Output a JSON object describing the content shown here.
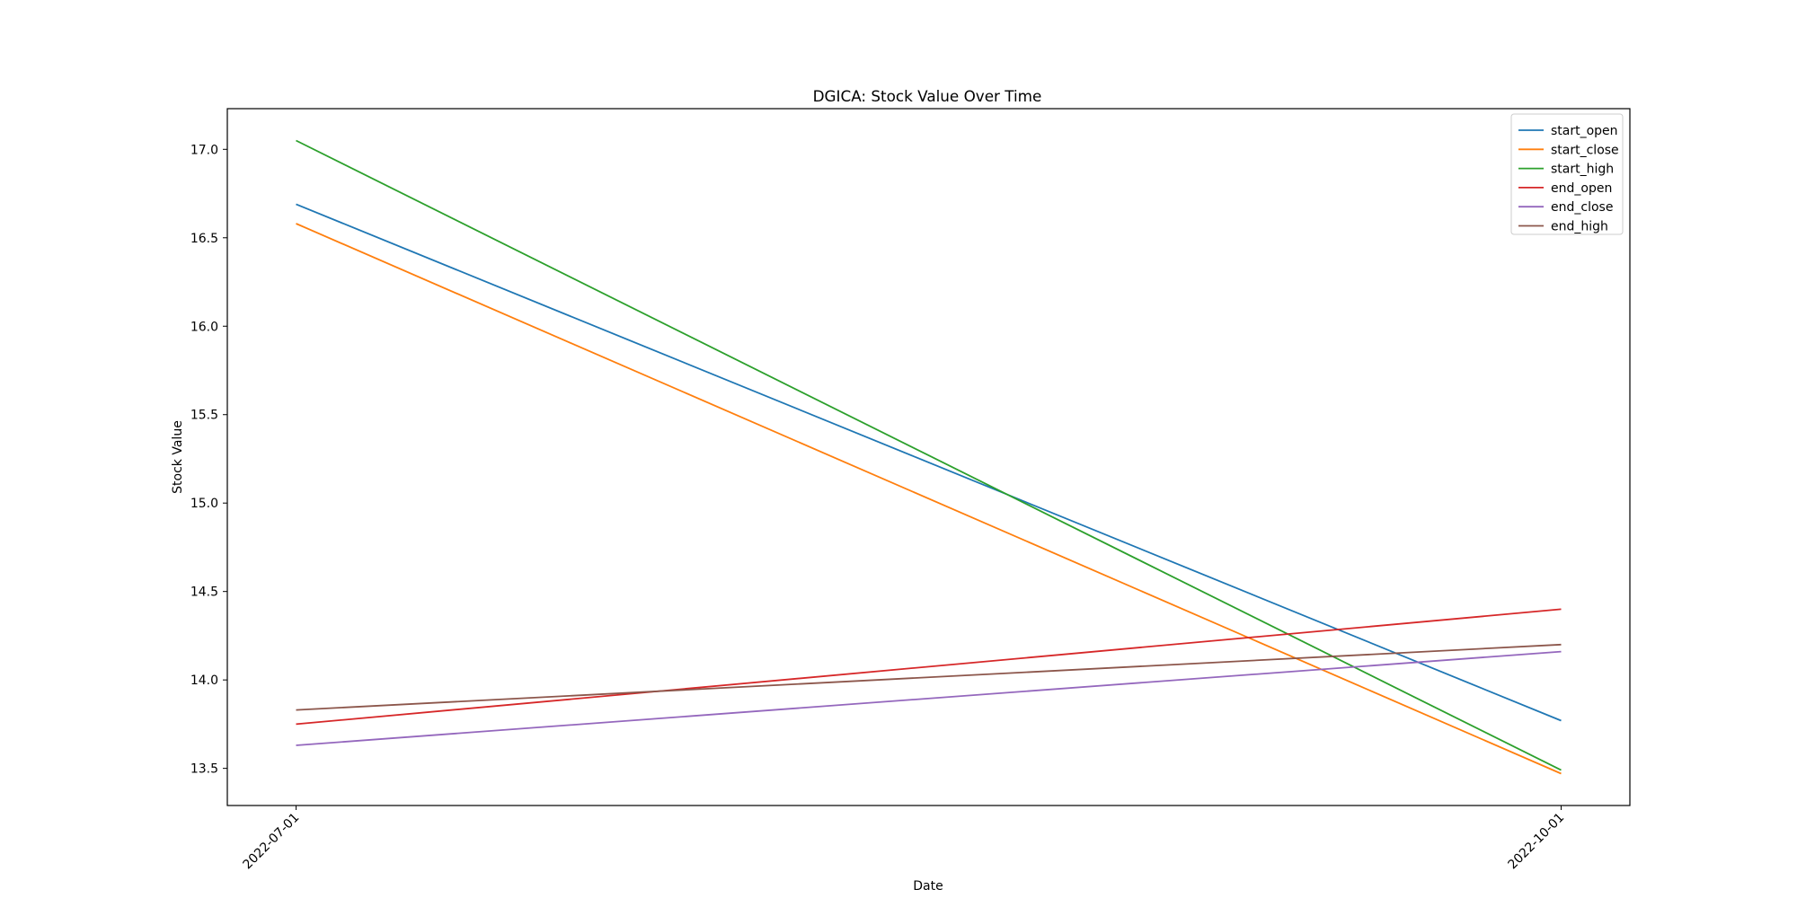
{
  "chart_data": {
    "type": "line",
    "title": "DGICA: Stock Value Over Time",
    "xlabel": "Date",
    "ylabel": "Stock Value",
    "x": [
      "2022-07-01",
      "2022-10-01"
    ],
    "xlim": [
      "2022-06-26",
      "2022-10-06"
    ],
    "ylim": [
      13.29,
      17.23
    ],
    "yticks": [
      13.5,
      14.0,
      14.5,
      15.0,
      15.5,
      16.0,
      16.5,
      17.0
    ],
    "ytick_labels": [
      "13.5",
      "14.0",
      "14.5",
      "15.0",
      "15.5",
      "16.0",
      "16.5",
      "17.0"
    ],
    "grid": false,
    "legend_position": "top-right",
    "series": [
      {
        "name": "start_open",
        "color": "#1f77b4",
        "values": [
          16.69,
          13.77
        ]
      },
      {
        "name": "start_close",
        "color": "#ff7f0e",
        "values": [
          16.58,
          13.47
        ]
      },
      {
        "name": "start_high",
        "color": "#2ca02c",
        "values": [
          17.05,
          13.49
        ]
      },
      {
        "name": "end_open",
        "color": "#d62728",
        "values": [
          13.75,
          14.4
        ]
      },
      {
        "name": "end_close",
        "color": "#9467bd",
        "values": [
          13.63,
          14.16
        ]
      },
      {
        "name": "end_high",
        "color": "#8c564b",
        "values": [
          13.83,
          14.2
        ]
      }
    ]
  }
}
